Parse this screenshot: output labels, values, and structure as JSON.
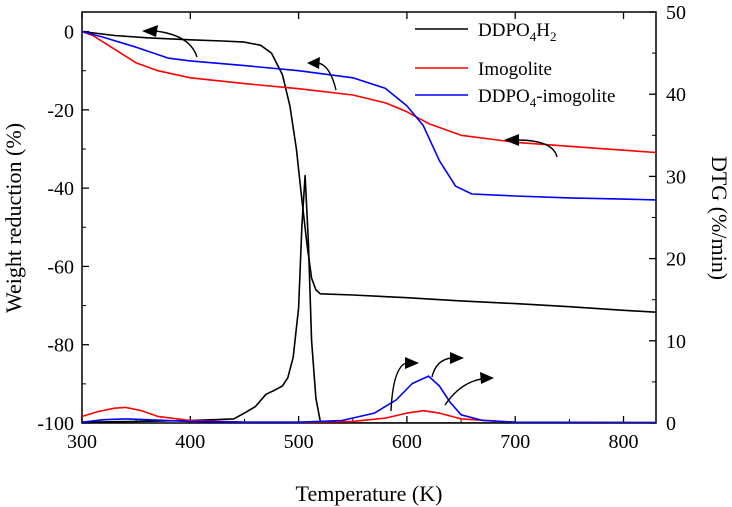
{
  "chart_data": {
    "type": "line",
    "title": "",
    "xlabel": "Temperature (K)",
    "ylabel_left": "Weight reduction (%)",
    "ylabel_right": "DTG (%/min)",
    "xlim": [
      300,
      830
    ],
    "ylim_left": [
      -100,
      5
    ],
    "ylim_right": [
      0,
      50
    ],
    "x_ticks": [
      300,
      400,
      500,
      600,
      700,
      800
    ],
    "y_left_ticks": [
      0,
      -20,
      -40,
      -60,
      -80,
      -100
    ],
    "y_right_ticks": [
      0,
      10,
      20,
      30,
      40,
      50
    ],
    "grid": false,
    "legend_position": "top-right",
    "legend": [
      {
        "label": "DDPO",
        "sub1": "4",
        "mid": "H",
        "sub2": "2",
        "tail": "",
        "color": "#000000"
      },
      {
        "label": "Imogolite",
        "sub1": "",
        "mid": "",
        "sub2": "",
        "tail": "",
        "color": "#ff0000"
      },
      {
        "label": "DDPO",
        "sub1": "4",
        "mid": "",
        "sub2": "",
        "tail": "-imogolite",
        "color": "#0000ff"
      }
    ],
    "series": [
      {
        "name": "DDPO4H2 weight",
        "axis": "left",
        "color": "#000000",
        "x": [
          300,
          330,
          360,
          400,
          430,
          450,
          465,
          475,
          485,
          492,
          498,
          503,
          508,
          512,
          516,
          520,
          550,
          600,
          650,
          700,
          750,
          800,
          830
        ],
        "y": [
          0,
          -1,
          -1.6,
          -2.1,
          -2.4,
          -2.7,
          -3.5,
          -5.5,
          -11,
          -19,
          -30,
          -43,
          -55,
          -63,
          -66,
          -67,
          -67.3,
          -68,
          -68.8,
          -69.5,
          -70.3,
          -71.2,
          -71.7
        ]
      },
      {
        "name": "Imogolite weight",
        "axis": "left",
        "color": "#ff0000",
        "x": [
          300,
          310,
          330,
          350,
          370,
          400,
          450,
          500,
          550,
          580,
          600,
          620,
          650,
          700,
          750,
          800,
          830
        ],
        "y": [
          0,
          -1,
          -4.5,
          -8,
          -10,
          -11.8,
          -13.3,
          -14.6,
          -16.2,
          -18.2,
          -20.5,
          -23.5,
          -26.5,
          -28.3,
          -29.3,
          -30.3,
          -30.9
        ]
      },
      {
        "name": "DDPO4-imogolite weight",
        "axis": "left",
        "color": "#0000ff",
        "x": [
          300,
          320,
          350,
          380,
          400,
          450,
          500,
          550,
          580,
          600,
          615,
          630,
          645,
          660,
          700,
          750,
          800,
          830
        ],
        "y": [
          0,
          -1.5,
          -4,
          -6.8,
          -7.5,
          -8.7,
          -10,
          -11.8,
          -14.5,
          -19,
          -24,
          -33,
          -39.5,
          -41.5,
          -42,
          -42.5,
          -42.8,
          -43
        ]
      },
      {
        "name": "DDPO4H2 DTG",
        "axis": "right",
        "color": "#000000",
        "x": [
          300,
          350,
          400,
          440,
          450,
          460,
          470,
          478,
          485,
          490,
          495,
          500,
          503,
          506,
          509,
          512,
          516,
          520,
          530,
          600,
          700,
          830
        ],
        "y": [
          0.1,
          0.2,
          0.3,
          0.5,
          1.2,
          2,
          3.5,
          4,
          4.5,
          5.5,
          8,
          14,
          24,
          30.1,
          22,
          10,
          3,
          0.2,
          0,
          0,
          0,
          0
        ]
      },
      {
        "name": "Imogolite DTG",
        "axis": "right",
        "color": "#ff0000",
        "x": [
          300,
          315,
          330,
          340,
          355,
          370,
          400,
          450,
          500,
          550,
          580,
          600,
          615,
          630,
          650,
          700,
          830
        ],
        "y": [
          0.8,
          1.4,
          1.8,
          1.9,
          1.5,
          0.8,
          0.3,
          0.1,
          0.1,
          0.2,
          0.6,
          1.2,
          1.5,
          1.2,
          0.5,
          0.1,
          0.05
        ]
      },
      {
        "name": "DDPO4-imogolite DTG",
        "axis": "right",
        "color": "#0000ff",
        "x": [
          300,
          320,
          340,
          360,
          400,
          450,
          500,
          540,
          570,
          590,
          605,
          620,
          630,
          640,
          650,
          670,
          700,
          830
        ],
        "y": [
          0.1,
          0.4,
          0.5,
          0.4,
          0.2,
          0.1,
          0.1,
          0.3,
          1.2,
          2.8,
          4.8,
          5.7,
          4.5,
          2.5,
          1.0,
          0.3,
          0.1,
          0.05
        ]
      }
    ],
    "annotations": [
      {
        "type": "arrow",
        "direction": "left",
        "target": "DDPO4H2 weight",
        "label": ""
      },
      {
        "type": "arrow",
        "direction": "left",
        "target": "DDPO4-imogolite weight",
        "label": ""
      },
      {
        "type": "arrow",
        "direction": "left",
        "target": "Imogolite weight",
        "label": ""
      },
      {
        "type": "arrow",
        "direction": "right",
        "target": "DTG peaks",
        "label": ""
      }
    ]
  }
}
